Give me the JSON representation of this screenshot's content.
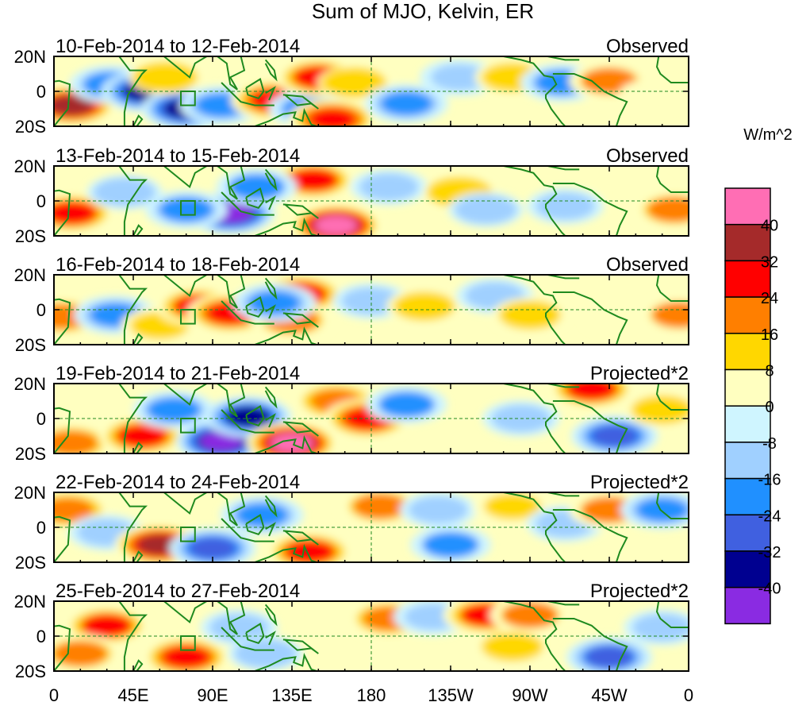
{
  "chart_data": {
    "type": "heatmap",
    "title": "Sum of MJO, Kelvin, ER",
    "units": "W/m^2",
    "x_ticks": [
      "0",
      "45E",
      "90E",
      "135E",
      "180",
      "135W",
      "90W",
      "45W",
      "0"
    ],
    "y_ticks": [
      "20N",
      "0",
      "20S"
    ],
    "xlim_lon": [
      0,
      360
    ],
    "ylim_lat": [
      -20,
      20
    ],
    "colorbar": {
      "levels": [
        "40",
        "32",
        "24",
        "16",
        "8",
        "0",
        "-8",
        "-16",
        "-24",
        "-32",
        "-40"
      ],
      "colors": [
        "#ff6eb4",
        "#a52a2a",
        "#ff0000",
        "#ff7f00",
        "#ffd700",
        "#ffffc0",
        "#cff5ff",
        "#a0d0ff",
        "#2090ff",
        "#4060e0",
        "#000090",
        "#8a2be2"
      ]
    },
    "panels": [
      {
        "date_range": "10-Feb-2014 to 12-Feb-2014",
        "label": "Observed",
        "features": [
          {
            "lon": 10,
            "lat": -8,
            "value": 36
          },
          {
            "lon": 32,
            "lat": 4,
            "value": -20
          },
          {
            "lon": 52,
            "lat": 0,
            "value": -36
          },
          {
            "lon": 75,
            "lat": -10,
            "value": -38
          },
          {
            "lon": 95,
            "lat": -8,
            "value": -22
          },
          {
            "lon": 63,
            "lat": 8,
            "value": 10
          },
          {
            "lon": 125,
            "lat": -5,
            "value": 30
          },
          {
            "lon": 145,
            "lat": -10,
            "value": -20
          },
          {
            "lon": 158,
            "lat": -16,
            "value": 32
          },
          {
            "lon": 150,
            "lat": 8,
            "value": 26
          },
          {
            "lon": 170,
            "lat": 5,
            "value": 10
          },
          {
            "lon": 200,
            "lat": -7,
            "value": -22
          },
          {
            "lon": 230,
            "lat": 8,
            "value": -16
          },
          {
            "lon": 260,
            "lat": 8,
            "value": 12
          },
          {
            "lon": 288,
            "lat": 5,
            "value": -20
          },
          {
            "lon": 315,
            "lat": 6,
            "value": 18
          },
          {
            "lon": 340,
            "lat": -2,
            "value": 8
          }
        ]
      },
      {
        "date_range": "13-Feb-2014 to 15-Feb-2014",
        "label": "Observed",
        "features": [
          {
            "lon": 10,
            "lat": -7,
            "value": 28
          },
          {
            "lon": 40,
            "lat": 5,
            "value": -12
          },
          {
            "lon": 100,
            "lat": -7,
            "value": -42
          },
          {
            "lon": 75,
            "lat": -5,
            "value": -20
          },
          {
            "lon": 147,
            "lat": 12,
            "value": 26
          },
          {
            "lon": 115,
            "lat": 8,
            "value": -18
          },
          {
            "lon": 160,
            "lat": -14,
            "value": 44
          },
          {
            "lon": 190,
            "lat": 8,
            "value": -14
          },
          {
            "lon": 230,
            "lat": 5,
            "value": 10
          },
          {
            "lon": 245,
            "lat": -5,
            "value": -12
          },
          {
            "lon": 290,
            "lat": -3,
            "value": -14
          },
          {
            "lon": 330,
            "lat": 5,
            "value": 8
          },
          {
            "lon": 352,
            "lat": -5,
            "value": 20
          }
        ]
      },
      {
        "date_range": "16-Feb-2014 to 18-Feb-2014",
        "label": "Observed",
        "features": [
          {
            "lon": 5,
            "lat": -4,
            "value": 22
          },
          {
            "lon": 35,
            "lat": -3,
            "value": -22
          },
          {
            "lon": 60,
            "lat": -9,
            "value": 14
          },
          {
            "lon": 82,
            "lat": 2,
            "value": 26
          },
          {
            "lon": 100,
            "lat": -2,
            "value": 30
          },
          {
            "lon": 140,
            "lat": 9,
            "value": 28
          },
          {
            "lon": 135,
            "lat": -6,
            "value": 20
          },
          {
            "lon": 125,
            "lat": 4,
            "value": -22
          },
          {
            "lon": 180,
            "lat": 5,
            "value": -14
          },
          {
            "lon": 210,
            "lat": 2,
            "value": 12
          },
          {
            "lon": 250,
            "lat": 8,
            "value": -14
          },
          {
            "lon": 270,
            "lat": -3,
            "value": 12
          },
          {
            "lon": 320,
            "lat": -5,
            "value": 8
          },
          {
            "lon": 355,
            "lat": -3,
            "value": 18
          }
        ]
      },
      {
        "date_range": "19-Feb-2014 to 21-Feb-2014",
        "label": "Projected*2",
        "features": [
          {
            "lon": 10,
            "lat": -14,
            "value": 22
          },
          {
            "lon": 50,
            "lat": -10,
            "value": 28
          },
          {
            "lon": 68,
            "lat": 5,
            "value": -20
          },
          {
            "lon": 95,
            "lat": -13,
            "value": -44
          },
          {
            "lon": 110,
            "lat": 1,
            "value": -34
          },
          {
            "lon": 135,
            "lat": -14,
            "value": 44
          },
          {
            "lon": 160,
            "lat": 10,
            "value": 24
          },
          {
            "lon": 178,
            "lat": 0,
            "value": 30
          },
          {
            "lon": 200,
            "lat": 8,
            "value": -18
          },
          {
            "lon": 265,
            "lat": 0,
            "value": -14
          },
          {
            "lon": 305,
            "lat": 17,
            "value": 28
          },
          {
            "lon": 318,
            "lat": -10,
            "value": -30
          },
          {
            "lon": 345,
            "lat": 5,
            "value": 12
          }
        ]
      },
      {
        "date_range": "22-Feb-2014 to 24-Feb-2014",
        "label": "Projected*2",
        "features": [
          {
            "lon": 8,
            "lat": 10,
            "value": 24
          },
          {
            "lon": 30,
            "lat": -3,
            "value": -14
          },
          {
            "lon": 60,
            "lat": -10,
            "value": 38
          },
          {
            "lon": 90,
            "lat": -12,
            "value": -30
          },
          {
            "lon": 118,
            "lat": 7,
            "value": -22
          },
          {
            "lon": 145,
            "lat": -14,
            "value": 28
          },
          {
            "lon": 185,
            "lat": 12,
            "value": 20
          },
          {
            "lon": 218,
            "lat": 10,
            "value": -14
          },
          {
            "lon": 225,
            "lat": -10,
            "value": -18
          },
          {
            "lon": 260,
            "lat": 12,
            "value": 16
          },
          {
            "lon": 290,
            "lat": 2,
            "value": -14
          },
          {
            "lon": 315,
            "lat": 10,
            "value": 18
          },
          {
            "lon": 345,
            "lat": 10,
            "value": -22
          }
        ]
      },
      {
        "date_range": "25-Feb-2014 to 27-Feb-2014",
        "label": "Projected*2",
        "features": [
          {
            "lon": 30,
            "lat": 6,
            "value": 26
          },
          {
            "lon": 15,
            "lat": -10,
            "value": 20
          },
          {
            "lon": 75,
            "lat": -12,
            "value": 30
          },
          {
            "lon": 105,
            "lat": 5,
            "value": -14
          },
          {
            "lon": 120,
            "lat": -10,
            "value": -12
          },
          {
            "lon": 190,
            "lat": 10,
            "value": 22
          },
          {
            "lon": 215,
            "lat": 11,
            "value": -16
          },
          {
            "lon": 245,
            "lat": 12,
            "value": 26
          },
          {
            "lon": 270,
            "lat": 12,
            "value": 18
          },
          {
            "lon": 260,
            "lat": -6,
            "value": 12
          },
          {
            "lon": 315,
            "lat": -12,
            "value": -28
          },
          {
            "lon": 345,
            "lat": 5,
            "value": -14
          }
        ]
      }
    ]
  }
}
